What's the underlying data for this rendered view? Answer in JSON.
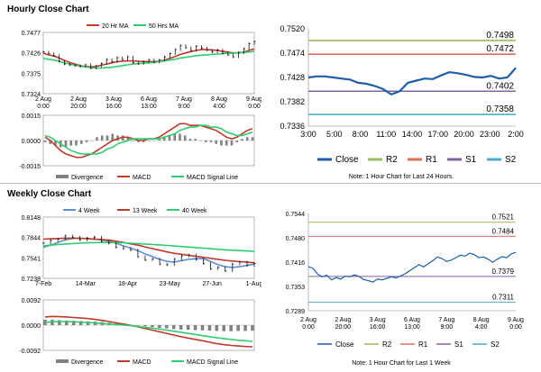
{
  "hourly": {
    "title": "Hourly Close Chart",
    "note": "Note: 1 Hour Chart for Last 24 Hours."
  },
  "weekly": {
    "title": "Weekly Close Chart",
    "note": "Note: 1 Hour Chart for Last 1 Week"
  },
  "colors": {
    "close": "#1f5fa8",
    "r2": "#9bbb59",
    "r1": "#e06c5c",
    "s1": "#8064a2",
    "s2": "#4bacc6",
    "ma20": "#c0392b",
    "ma50": "#2ecc71",
    "divergence": "#808080"
  },
  "chart_data": [
    {
      "id": "hourly_price",
      "type": "line",
      "legend": [
        "20 Hr MA",
        "50 Hrs MA"
      ],
      "ylim": [
        0.7324,
        0.7477
      ],
      "yticks": [
        "0.7477",
        "0.7426",
        "0.7375",
        "0.7324"
      ],
      "xticks": [
        "2 Aug\n0:00",
        "2 Aug\n20:00",
        "3 Aug\n16:00",
        "6 Aug\n13:00",
        "7 Aug\n9:00",
        "8 Aug\n4:00",
        "9 Aug\n0:00"
      ],
      "close": [
        0.7428,
        0.7424,
        0.7419,
        0.7405,
        0.7398,
        0.7396,
        0.7394,
        0.7392,
        0.7396,
        0.7388,
        0.7393,
        0.7399,
        0.7409,
        0.7404,
        0.7414,
        0.7409,
        0.7416,
        0.7402,
        0.7399,
        0.7404,
        0.7408,
        0.7403,
        0.7408,
        0.7416,
        0.7424,
        0.7434,
        0.7444,
        0.7439,
        0.7432,
        0.7442,
        0.7438,
        0.7433,
        0.7428,
        0.7433,
        0.7425,
        0.7421,
        0.7416,
        0.7426,
        0.7436,
        0.7449,
        0.7454
      ],
      "ma20": [
        0.7425,
        0.7421,
        0.7418,
        0.7413,
        0.7407,
        0.7402,
        0.7398,
        0.7394,
        0.7392,
        0.7391,
        0.7392,
        0.7395,
        0.7398,
        0.7401,
        0.7404,
        0.7405,
        0.7406,
        0.7406,
        0.7405,
        0.7404,
        0.7404,
        0.7404,
        0.7405,
        0.7408,
        0.7412,
        0.7417,
        0.7422,
        0.7426,
        0.7429,
        0.7432,
        0.7434,
        0.7434,
        0.7433,
        0.7432,
        0.743,
        0.7428,
        0.7426,
        0.7426,
        0.7428,
        0.7432,
        0.7436
      ],
      "ma50": [
        0.7412,
        0.741,
        0.7408,
        0.7405,
        0.7401,
        0.7398,
        0.7395,
        0.7393,
        0.7391,
        0.7389,
        0.7388,
        0.7388,
        0.7389,
        0.739,
        0.7392,
        0.7394,
        0.7396,
        0.7398,
        0.7399,
        0.74,
        0.7401,
        0.7402,
        0.7404,
        0.7406,
        0.7408,
        0.741,
        0.7413,
        0.7415,
        0.7417,
        0.7419,
        0.742,
        0.7421,
        0.7422,
        0.7423,
        0.7424,
        0.7425,
        0.7425,
        0.7426,
        0.7427,
        0.7428,
        0.743
      ]
    },
    {
      "id": "hourly_macd",
      "type": "line",
      "legend": [
        "Divergence",
        "MACD",
        "MACD Signal Line"
      ],
      "ylim": [
        -0.0015,
        0.0015
      ],
      "yticks": [
        "0.0015",
        "0.0000",
        "-0.0015"
      ],
      "macd": [
        0.0002,
        0.0,
        -0.0003,
        -0.0006,
        -0.0008,
        -0.0009,
        -0.001,
        -0.001,
        -0.0009,
        -0.0008,
        -0.0006,
        -0.0004,
        -0.0002,
        0.0,
        0.0001,
        0.0002,
        0.0002,
        0.0001,
        0.0,
        0.0,
        0.0001,
        0.0001,
        0.0002,
        0.0004,
        0.0006,
        0.0008,
        0.001,
        0.001,
        0.0009,
        0.0009,
        0.0009,
        0.0008,
        0.0007,
        0.0006,
        0.0004,
        0.0002,
        0.0001,
        0.0002,
        0.0004,
        0.0006,
        0.0007
      ],
      "signal": [
        0.0003,
        0.0002,
        0.0,
        -0.0002,
        -0.0004,
        -0.0006,
        -0.0007,
        -0.0008,
        -0.0008,
        -0.0008,
        -0.0008,
        -0.0007,
        -0.0005,
        -0.0004,
        -0.0002,
        -0.0001,
        0.0,
        0.0001,
        0.0001,
        0.0001,
        0.0001,
        0.0001,
        0.0001,
        0.0002,
        0.0003,
        0.0004,
        0.0006,
        0.0007,
        0.0008,
        0.0008,
        0.0009,
        0.0009,
        0.0008,
        0.0008,
        0.0007,
        0.0005,
        0.0004,
        0.0003,
        0.0003,
        0.0004,
        0.0005
      ]
    },
    {
      "id": "hourly_close_levels",
      "type": "line",
      "ylim": [
        0.7336,
        0.752
      ],
      "yticks": [
        "0.7520",
        "0.7474",
        "0.7428",
        "0.7382",
        "0.7336"
      ],
      "xticks": [
        "3:00",
        "5:00",
        "8:00",
        "11:00",
        "14:00",
        "17:00",
        "20:00",
        "23:00",
        "2:00"
      ],
      "legend": [
        "Close",
        "R2",
        "R1",
        "S1",
        "S2"
      ],
      "levels": {
        "r2": 0.7498,
        "r1": 0.7472,
        "s1": 0.7402,
        "s2": 0.7358
      },
      "level_labels": {
        "r2": "0.7498",
        "r1": "0.7472",
        "s1": "0.7402",
        "s2": "0.7358"
      },
      "close": [
        0.7428,
        0.743,
        0.743,
        0.7428,
        0.7426,
        0.7424,
        0.7418,
        0.7416,
        0.7412,
        0.7406,
        0.7396,
        0.7402,
        0.7418,
        0.7422,
        0.7426,
        0.7425,
        0.7432,
        0.7438,
        0.7436,
        0.7433,
        0.7429,
        0.7428,
        0.7431,
        0.7426,
        0.7428,
        0.7446
      ]
    },
    {
      "id": "weekly_price",
      "type": "line",
      "legend": [
        "4 Week",
        "13 Week",
        "40 Week"
      ],
      "ylim": [
        0.7238,
        0.8148
      ],
      "yticks": [
        "0.8148",
        "0.7844",
        "0.7541",
        "0.7238"
      ],
      "xticks": [
        "7-Feb",
        "14-Mar",
        "18-Apr",
        "23-May",
        "27-Jun",
        "1-Aug"
      ],
      "close": [
        0.776,
        0.78,
        0.782,
        0.787,
        0.785,
        0.781,
        0.7835,
        0.785,
        0.779,
        0.776,
        0.77,
        0.768,
        0.766,
        0.756,
        0.751,
        0.7525,
        0.745,
        0.744,
        0.752,
        0.757,
        0.7585,
        0.752,
        0.746,
        0.738,
        0.74,
        0.735,
        0.745,
        0.748,
        0.743,
        0.746
      ],
      "wk4": [
        0.77,
        0.773,
        0.777,
        0.781,
        0.783,
        0.7835,
        0.783,
        0.782,
        0.781,
        0.779,
        0.776,
        0.772,
        0.769,
        0.765,
        0.76,
        0.756,
        0.752,
        0.749,
        0.748,
        0.75,
        0.752,
        0.753,
        0.753,
        0.749,
        0.744,
        0.741,
        0.74,
        0.741,
        0.743,
        0.745
      ],
      "wk13": [
        0.782,
        0.7825,
        0.783,
        0.7835,
        0.7835,
        0.7832,
        0.7828,
        0.7822,
        0.7815,
        0.7805,
        0.779,
        0.777,
        0.775,
        0.773,
        0.7705,
        0.768,
        0.7655,
        0.763,
        0.761,
        0.7595,
        0.758,
        0.7565,
        0.755,
        0.7535,
        0.752,
        0.7505,
        0.7495,
        0.7485,
        0.7478,
        0.747
      ],
      "wk40": [
        0.772,
        0.773,
        0.774,
        0.7748,
        0.7755,
        0.776,
        0.7765,
        0.7768,
        0.777,
        0.777,
        0.7768,
        0.7765,
        0.776,
        0.7754,
        0.7748,
        0.7741,
        0.7734,
        0.7726,
        0.7718,
        0.771,
        0.7702,
        0.7694,
        0.7686,
        0.7678,
        0.767,
        0.7662,
        0.7656,
        0.765,
        0.7645,
        0.764
      ]
    },
    {
      "id": "weekly_macd",
      "type": "line",
      "legend": [
        "Divergence",
        "MACD",
        "MACD Signal Line"
      ],
      "ylim": [
        -0.0092,
        0.0092
      ],
      "yticks": [
        "0.0092",
        "0.0000",
        "-0.0092"
      ],
      "macd": [
        0.003,
        0.0032,
        0.0031,
        0.003,
        0.0028,
        0.0026,
        0.0024,
        0.0021,
        0.0017,
        0.0013,
        0.0008,
        0.0004,
        -0.0001,
        -0.0006,
        -0.0012,
        -0.0018,
        -0.0024,
        -0.003,
        -0.0036,
        -0.0042,
        -0.0047,
        -0.0052,
        -0.0057,
        -0.0062,
        -0.0067,
        -0.0071,
        -0.0074,
        -0.0076,
        -0.0078,
        -0.0079
      ],
      "signal": [
        0.001,
        0.0012,
        0.0013,
        0.0013,
        0.0012,
        0.0011,
        0.001,
        0.0008,
        0.0006,
        0.0004,
        0.0002,
        0.0,
        -0.0002,
        -0.0005,
        -0.0008,
        -0.0011,
        -0.0014,
        -0.0018,
        -0.0022,
        -0.0026,
        -0.003,
        -0.0034,
        -0.0038,
        -0.0042,
        -0.0046,
        -0.0049,
        -0.0052,
        -0.0055,
        -0.0057,
        -0.0059
      ]
    },
    {
      "id": "weekly_close_levels",
      "type": "line",
      "ylim": [
        0.7289,
        0.7544
      ],
      "yticks": [
        "0.7544",
        "0.7480",
        "0.7416",
        "0.7353",
        "0.7289"
      ],
      "xticks": [
        "2 Aug\n0:00",
        "2 Aug\n20:00",
        "3 Aug\n16:00",
        "6 Aug\n13:00",
        "7 Aug\n9:00",
        "8 Aug\n4:00",
        "9 Aug\n0:00"
      ],
      "legend": [
        "Close",
        "R2",
        "R1",
        "S1",
        "S2"
      ],
      "levels": {
        "r2": 0.7521,
        "r1": 0.7484,
        "s1": 0.7379,
        "s2": 0.7311
      },
      "level_labels": {
        "r2": "0.7521",
        "r1": "0.7484",
        "s1": "0.7379",
        "s2": "0.7311"
      },
      "close": [
        0.7405,
        0.74,
        0.7385,
        0.7378,
        0.7382,
        0.737,
        0.7376,
        0.7372,
        0.738,
        0.7378,
        0.7383,
        0.7379,
        0.7371,
        0.7368,
        0.7364,
        0.7372,
        0.737,
        0.7374,
        0.7378,
        0.7375,
        0.738,
        0.7386,
        0.7394,
        0.7402,
        0.741,
        0.7404,
        0.7412,
        0.742,
        0.743,
        0.7426,
        0.7418,
        0.7422,
        0.7428,
        0.7435,
        0.7432,
        0.744,
        0.7436,
        0.7428,
        0.743,
        0.7424,
        0.7416,
        0.7424,
        0.7431,
        0.7428,
        0.7438,
        0.7442
      ]
    }
  ]
}
